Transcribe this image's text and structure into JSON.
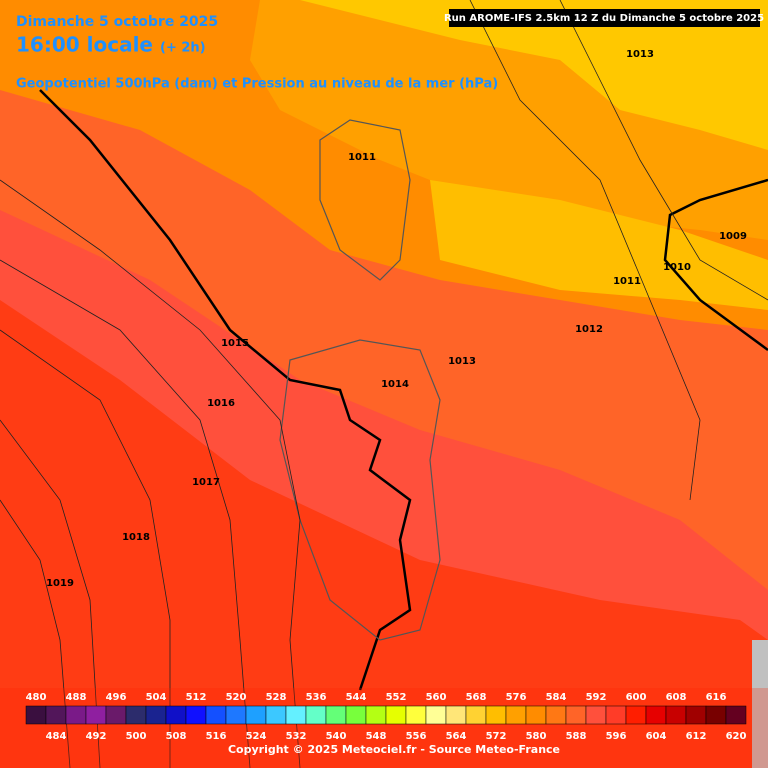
{
  "header": {
    "date": "Dimanche 5 octobre 2025",
    "time": "16:00 locale",
    "offset": "(+ 2h)",
    "field": "Geopotentiel 500hPa (dam) et Pression au niveau de la mer (hPa)",
    "run": "Run AROME-IFS 2.5km 12 Z du Dimanche 5 octobre 2025"
  },
  "isobar_labels": [
    "1013",
    "1011",
    "1009",
    "1010",
    "1011",
    "1012",
    "1015",
    "1013",
    "1014",
    "1016",
    "1017",
    "1018",
    "1019"
  ],
  "colorbar": {
    "labels": [
      480,
      484,
      488,
      492,
      496,
      500,
      504,
      508,
      512,
      516,
      520,
      524,
      528,
      532,
      536,
      540,
      544,
      548,
      552,
      556,
      560,
      564,
      568,
      572,
      576,
      580,
      584,
      588,
      592,
      596,
      600,
      604,
      608,
      612,
      616,
      620
    ],
    "colors": [
      "#3a0f3f",
      "#52165a",
      "#7a1a88",
      "#8f1fa0",
      "#6a1a6a",
      "#2c2c6c",
      "#1a2390",
      "#1010c8",
      "#1010ff",
      "#1450ff",
      "#1e78ff",
      "#1ea0ff",
      "#3cc8ff",
      "#64f0ff",
      "#64ffc8",
      "#64ff78",
      "#78ff3c",
      "#b4ff14",
      "#e6ff00",
      "#ffff3c",
      "#ffff96",
      "#ffe678",
      "#ffd232",
      "#ffbe00",
      "#ffa000",
      "#ff8c00",
      "#ff7814",
      "#ff6428",
      "#ff503c",
      "#ff3c28",
      "#ff1e00",
      "#e60000",
      "#c80000",
      "#a00000",
      "#780000",
      "#640020"
    ]
  },
  "copyright": "Copyright © 2025 Meteociel.fr - Source Meteo-France"
}
